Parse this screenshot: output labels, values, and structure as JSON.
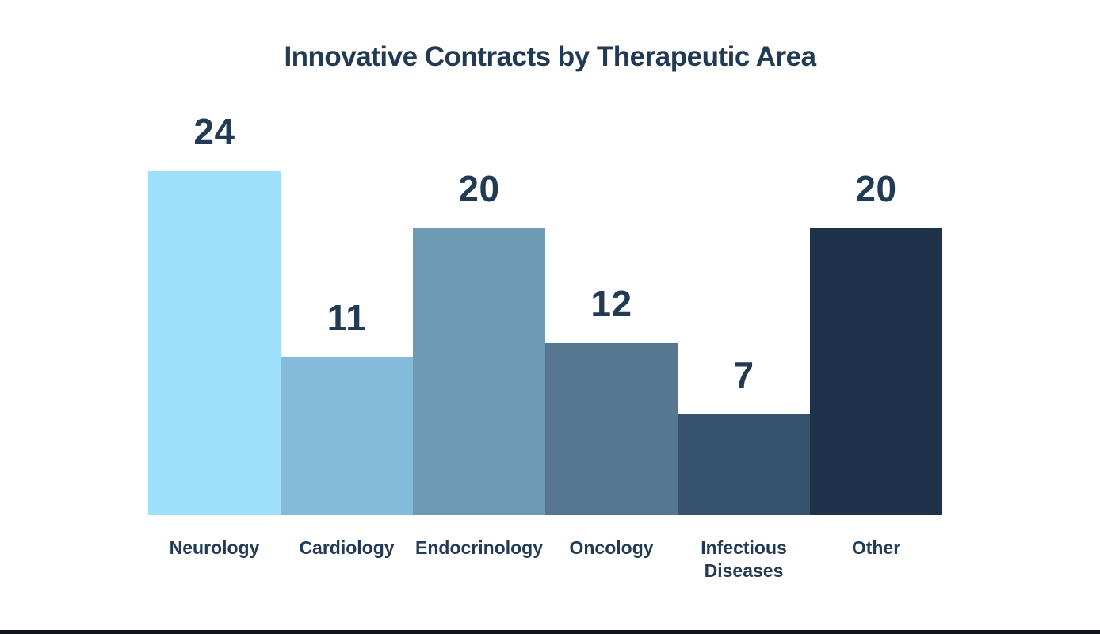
{
  "chart": {
    "title": "Innovative Contracts by Therapeutic Area",
    "text_color": "#223a54",
    "background_color": "#ffffff"
  },
  "chart_data": {
    "type": "bar",
    "title": "Innovative Contracts by Therapeutic Area",
    "categories": [
      "Neurology",
      "Cardiology",
      "Endocrinology",
      "Oncology",
      "Infectious Diseases",
      "Other"
    ],
    "values": [
      24,
      11,
      20,
      12,
      7,
      20
    ],
    "bar_colors": [
      "#9edffb",
      "#84bbd9",
      "#6f9ab3",
      "#557791",
      "#36526d",
      "#1d324a"
    ],
    "xlabel": "",
    "ylabel": "",
    "ylim": [
      0,
      24
    ],
    "grid": false,
    "legend": "none",
    "data_labels": "above-bars",
    "bar_gap": 0,
    "orientation": "vertical"
  }
}
